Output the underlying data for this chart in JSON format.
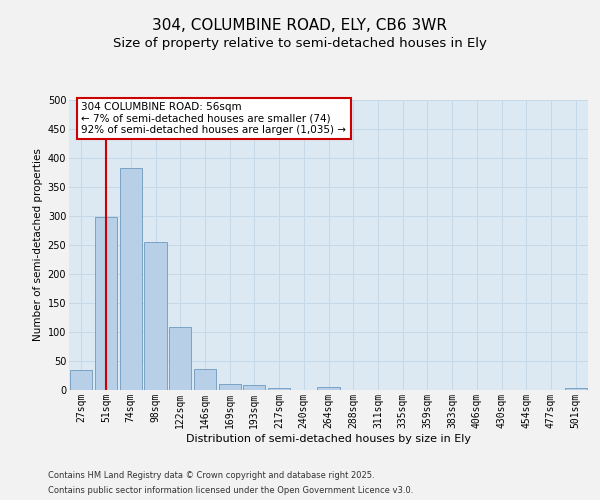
{
  "title1": "304, COLUMBINE ROAD, ELY, CB6 3WR",
  "title2": "Size of property relative to semi-detached houses in Ely",
  "xlabel": "Distribution of semi-detached houses by size in Ely",
  "ylabel": "Number of semi-detached properties",
  "bar_color": "#b8cfe8",
  "bar_edge_color": "#5b8db8",
  "grid_color": "#c5d8e8",
  "background_color": "#dce8f2",
  "fig_background": "#f2f2f2",
  "categories": [
    "27sqm",
    "51sqm",
    "74sqm",
    "98sqm",
    "122sqm",
    "146sqm",
    "169sqm",
    "193sqm",
    "217sqm",
    "240sqm",
    "264sqm",
    "288sqm",
    "311sqm",
    "335sqm",
    "359sqm",
    "383sqm",
    "406sqm",
    "430sqm",
    "454sqm",
    "477sqm",
    "501sqm"
  ],
  "values": [
    35,
    298,
    383,
    255,
    108,
    36,
    11,
    8,
    4,
    0,
    5,
    0,
    0,
    0,
    0,
    0,
    0,
    0,
    0,
    0,
    4
  ],
  "vline_x": 1,
  "vline_color": "#cc0000",
  "annotation_line1": "304 COLUMBINE ROAD: 56sqm",
  "annotation_line2": "← 7% of semi-detached houses are smaller (74)",
  "annotation_line3": "92% of semi-detached houses are larger (1,035) →",
  "annotation_box_facecolor": "#ffffff",
  "annotation_box_edgecolor": "#cc0000",
  "ylim": [
    0,
    500
  ],
  "yticks": [
    0,
    50,
    100,
    150,
    200,
    250,
    300,
    350,
    400,
    450,
    500
  ],
  "footer_line1": "Contains HM Land Registry data © Crown copyright and database right 2025.",
  "footer_line2": "Contains public sector information licensed under the Open Government Licence v3.0.",
  "title1_fontsize": 11,
  "title2_fontsize": 9.5,
  "xlabel_fontsize": 8,
  "ylabel_fontsize": 7.5,
  "tick_fontsize": 7,
  "annotation_fontsize": 7.5,
  "footer_fontsize": 6
}
